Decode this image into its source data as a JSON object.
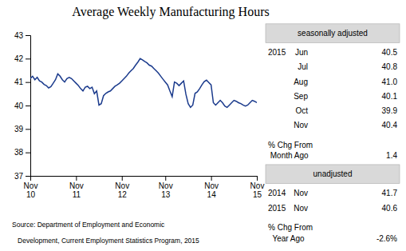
{
  "chart_data": {
    "type": "line",
    "title": "Average Weekly Manufacturing Hours",
    "categories": [
      "Nov\n10",
      null,
      null,
      null,
      null,
      null,
      null,
      null,
      null,
      null,
      null,
      null,
      null,
      null,
      null,
      null,
      null,
      null,
      null,
      null,
      "Nov\n11",
      null,
      null,
      null,
      null,
      null,
      null,
      null,
      null,
      null,
      null,
      null,
      null,
      null,
      null,
      null,
      null,
      null,
      null,
      null,
      "Nov\n12",
      null,
      null,
      null,
      null,
      null,
      null,
      null,
      null,
      null,
      null,
      null,
      null,
      null,
      null,
      null,
      null,
      null,
      null,
      "Nov\n13",
      null,
      null,
      null,
      null,
      null,
      null,
      null,
      null,
      null,
      null,
      null,
      null,
      null,
      null,
      null,
      null,
      null,
      null,
      null,
      "Nov\n14",
      null,
      null,
      null,
      null,
      null,
      null,
      null,
      null,
      null,
      null,
      null,
      null,
      null,
      null,
      null,
      null,
      null,
      null,
      null,
      "Nov\n15"
    ],
    "values": [
      41.15,
      41.25,
      41.1,
      41.2,
      41.05,
      41.0,
      40.9,
      40.85,
      40.75,
      40.8,
      40.95,
      41.1,
      41.35,
      41.25,
      41.1,
      41.0,
      41.15,
      41.2,
      41.15,
      41.05,
      40.95,
      40.85,
      40.72,
      40.62,
      40.78,
      40.82,
      40.72,
      40.78,
      40.5,
      40.62,
      40.02,
      40.08,
      40.42,
      40.52,
      40.58,
      40.62,
      40.72,
      40.82,
      40.88,
      40.95,
      41.05,
      41.15,
      41.25,
      41.38,
      41.48,
      41.58,
      41.72,
      41.85,
      42.0,
      41.95,
      41.88,
      41.82,
      41.72,
      41.68,
      41.58,
      41.48,
      41.38,
      41.25,
      41.12,
      41.0,
      40.88,
      40.62,
      40.38,
      41.0,
      40.95,
      40.85,
      40.95,
      41.05,
      40.48,
      40.08,
      39.92,
      40.02,
      40.52,
      40.58,
      40.72,
      40.88,
      41.02,
      41.08,
      40.98,
      40.88,
      40.12,
      40.02,
      40.12,
      40.22,
      40.12,
      39.98,
      39.92,
      40.02,
      40.12,
      40.22,
      40.18,
      40.12,
      40.08,
      40.02,
      39.98,
      40.02,
      40.12,
      40.22,
      40.18,
      40.12
    ],
    "color": "#1a3a8c",
    "ylim": [
      37,
      43
    ],
    "yticks": [
      37,
      38,
      39,
      40,
      41,
      42,
      43
    ],
    "annotations": {
      "source": [
        "Source: Department of Employment and Economic",
        "   Development, Current Employment Statistics Program, 2015"
      ],
      "panels": [
        {
          "heading": "seasonally adjusted",
          "year": "2015",
          "rows": [
            [
              "Jun",
              "40.5"
            ],
            [
              "Jul",
              "40.8"
            ],
            [
              "Aug",
              "41.0"
            ],
            [
              "Sep",
              "40.1"
            ],
            [
              "Oct",
              "39.9"
            ],
            [
              "Nov",
              "40.4"
            ]
          ],
          "change": [
            "% Chg From",
            " Month Ago"
          ],
          "change_value": "1.4"
        },
        {
          "heading": "unadjusted",
          "rows": [
            [
              "2014",
              "Nov",
              "41.7"
            ],
            [
              "2015",
              "Nov",
              "40.6"
            ]
          ],
          "change": [
            "% Chg From",
            "  Year Ago"
          ],
          "change_value": "-2.6%"
        }
      ]
    }
  }
}
